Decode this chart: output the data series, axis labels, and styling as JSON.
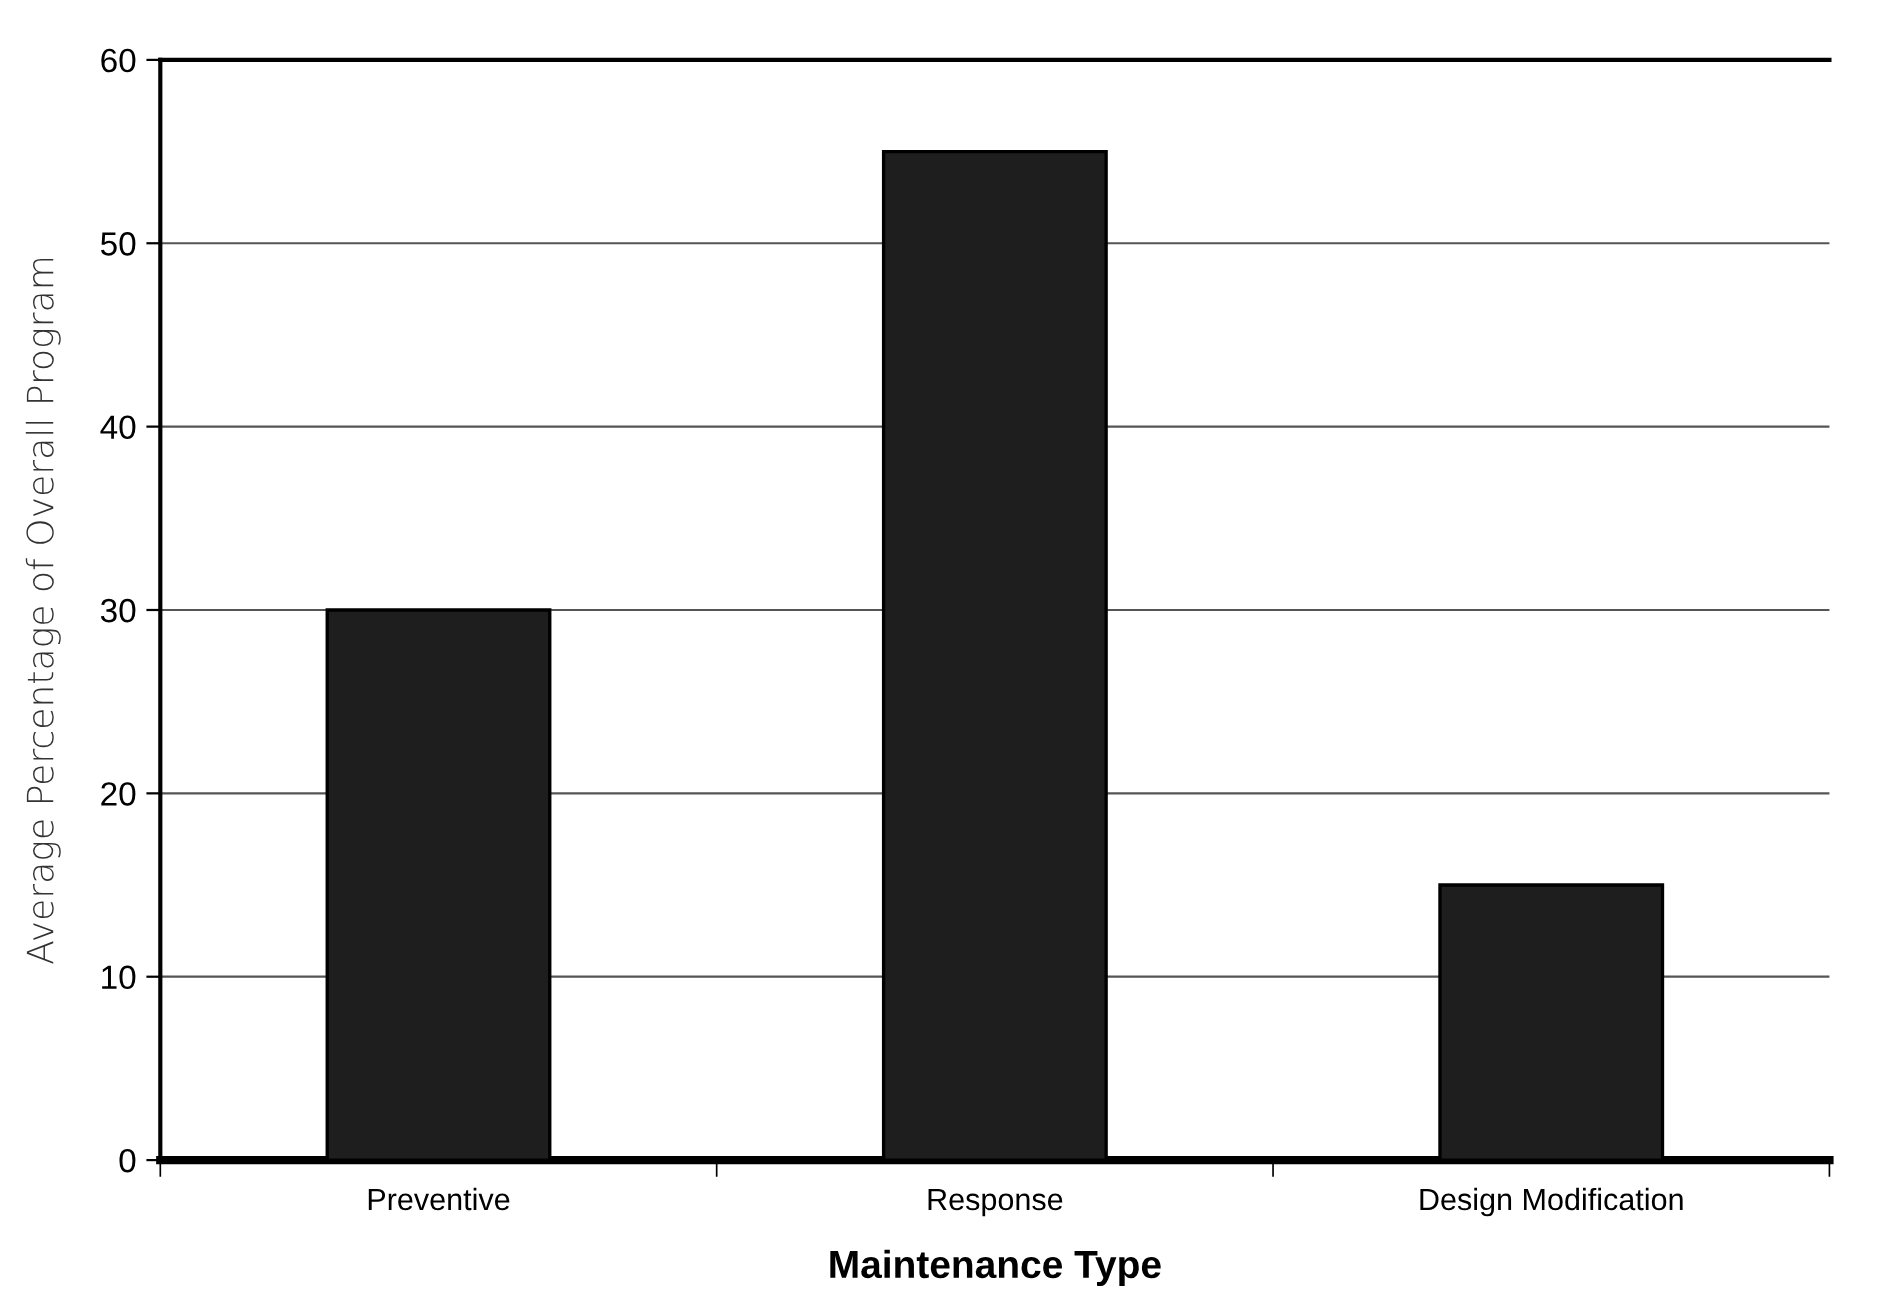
{
  "chart_data": {
    "type": "bar",
    "xlabel": "Maintenance Type",
    "ylabel": "Average Percentage of Overall Program",
    "categories": [
      "Preventive",
      "Response",
      "Design Modification"
    ],
    "values": [
      30,
      55,
      15
    ],
    "color": "#1e1e1e",
    "ylim": [
      0,
      60
    ],
    "yticks": [
      0,
      10,
      20,
      30,
      40,
      50,
      60
    ],
    "grid": "y"
  }
}
